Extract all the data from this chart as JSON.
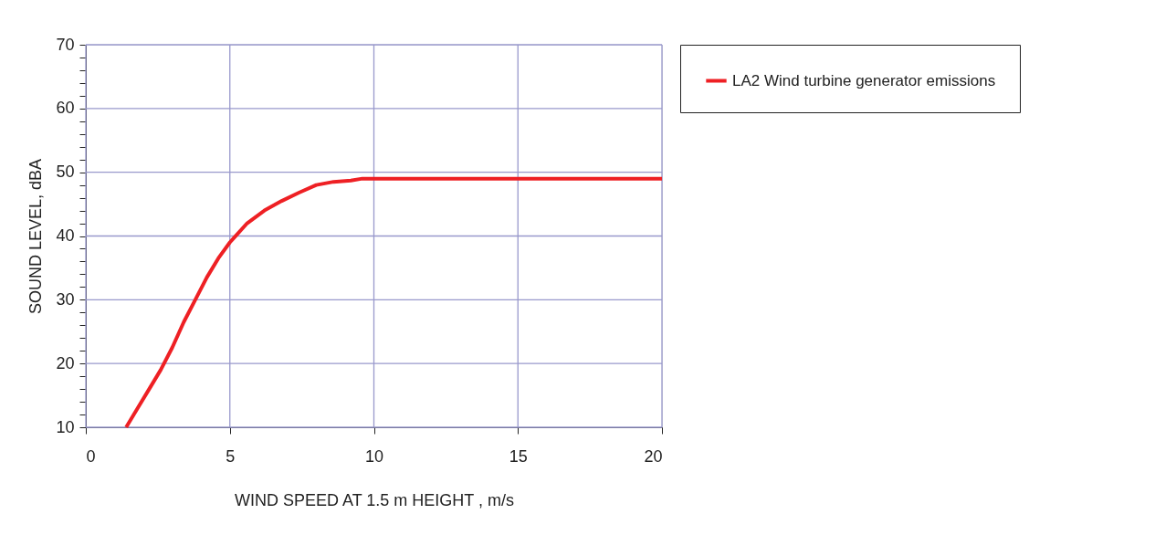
{
  "chart_data": {
    "type": "line",
    "xlabel": "WIND SPEED AT 1.5 m HEIGHT , m/s",
    "ylabel": "SOUND LEVEL, dBA",
    "x": [
      1.4,
      1.8,
      2.2,
      2.6,
      3.0,
      3.4,
      3.8,
      4.2,
      4.6,
      5.0,
      5.6,
      6.2,
      6.8,
      7.4,
      8.0,
      8.6,
      9.2,
      9.6,
      20
    ],
    "series": [
      {
        "name": "LA2 Wind turbine generator emissions",
        "color": "#ee2024",
        "values": [
          10,
          13,
          16,
          19,
          22.5,
          26.5,
          30,
          33.5,
          36.5,
          39,
          42,
          44,
          45.5,
          46.8,
          48,
          48.5,
          48.7,
          49,
          49
        ]
      }
    ],
    "xlim": [
      0,
      20
    ],
    "xticks": [
      0,
      5,
      10,
      15,
      20
    ],
    "ylim": [
      10,
      70
    ],
    "yticks": [
      10,
      {
        "value": 12,
        "label": null
      },
      {
        "value": 14,
        "label": null
      },
      {
        "value": 16,
        "label": null
      },
      {
        "value": 18,
        "label": null
      },
      20,
      {
        "value": 22,
        "label": null
      },
      {
        "value": 24,
        "label": null
      },
      {
        "value": 26,
        "label": null
      },
      {
        "value": 28,
        "label": null
      },
      30,
      {
        "value": 32,
        "label": null
      },
      {
        "value": 34,
        "label": null
      },
      {
        "value": 36,
        "label": null
      },
      {
        "value": 38,
        "label": null
      },
      40,
      {
        "value": 42,
        "label": null
      },
      {
        "value": 44,
        "label": null
      },
      {
        "value": 46,
        "label": null
      },
      {
        "value": 48,
        "label": null
      },
      50,
      {
        "value": 52,
        "label": null
      },
      {
        "value": 54,
        "label": null
      },
      {
        "value": 56,
        "label": null
      },
      {
        "value": 58,
        "label": null
      },
      60,
      {
        "value": 62,
        "label": null
      },
      {
        "value": 64,
        "label": null
      },
      {
        "value": 66,
        "label": null
      },
      {
        "value": 68,
        "label": null
      },
      70
    ],
    "grid": true,
    "legend": "right",
    "marker": "none",
    "line_style": "solid"
  }
}
